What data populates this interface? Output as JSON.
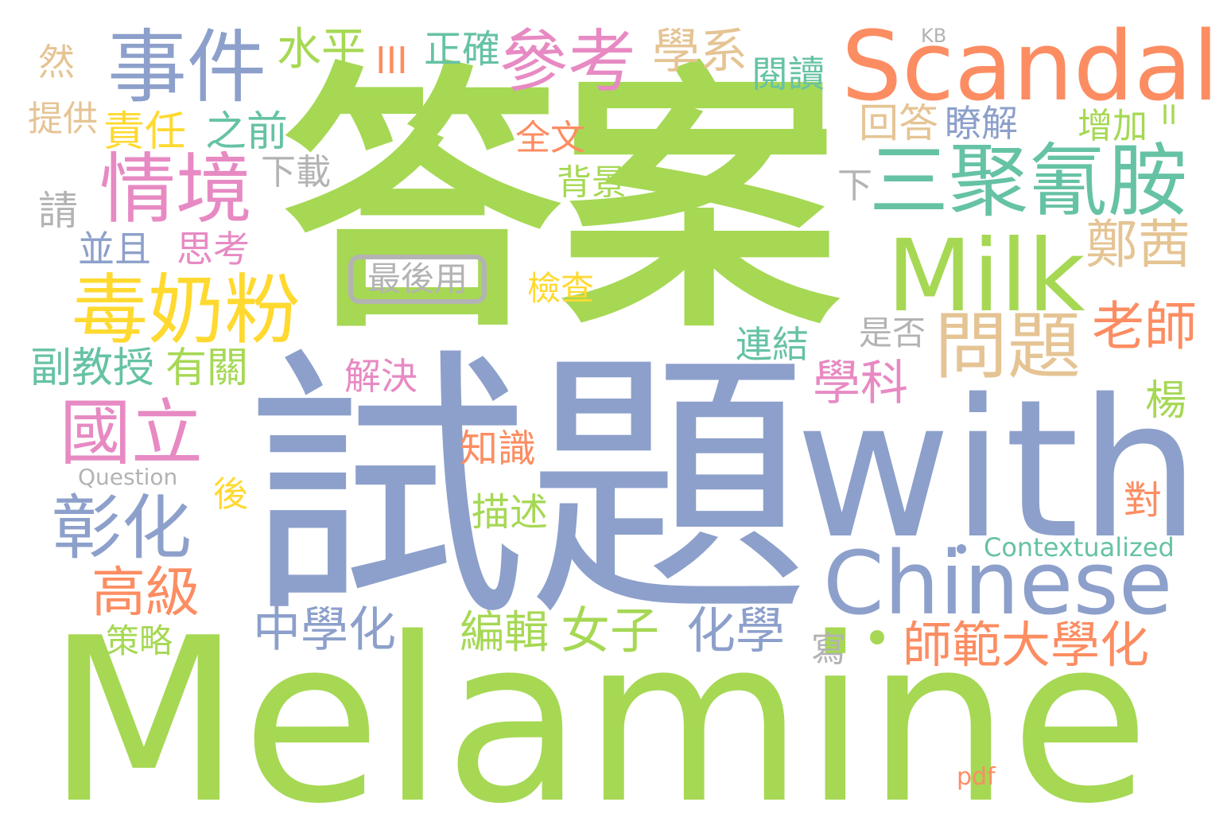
{
  "palette": {
    "green": "#a6d854",
    "blue": "#8da0cb",
    "orange": "#fc8d62",
    "pink": "#e78ac3",
    "teal": "#66c2a5",
    "tan": "#e5c494",
    "yellow": "#ffd92f",
    "grey": "#b3b3b3"
  },
  "words": [
    {
      "text": "答案",
      "color": "green"
    },
    {
      "text": "試題",
      "color": "blue"
    },
    {
      "text": "Melamine",
      "color": "green"
    },
    {
      "text": "with",
      "color": "blue"
    },
    {
      "text": "Scandal",
      "color": "orange"
    },
    {
      "text": "Milk",
      "color": "green"
    },
    {
      "text": "Chinese",
      "color": "blue"
    },
    {
      "text": "三聚氰胺",
      "color": "teal"
    },
    {
      "text": "毒奶粉",
      "color": "yellow"
    },
    {
      "text": "事件",
      "color": "blue"
    },
    {
      "text": "情境",
      "color": "pink"
    },
    {
      "text": "參考",
      "color": "pink"
    },
    {
      "text": "國立",
      "color": "pink"
    },
    {
      "text": "問題",
      "color": "tan"
    },
    {
      "text": "彰化",
      "color": "blue"
    },
    {
      "text": "老師",
      "color": "orange"
    },
    {
      "text": "鄭茜",
      "color": "tan"
    },
    {
      "text": "高級",
      "color": "orange"
    },
    {
      "text": "學系",
      "color": "tan"
    },
    {
      "text": "水平",
      "color": "green"
    },
    {
      "text": "正確",
      "color": "teal"
    },
    {
      "text": "KB",
      "color": "grey"
    },
    {
      "text": "III",
      "color": "orange"
    },
    {
      "text": "閱讀",
      "color": "teal"
    },
    {
      "text": "然",
      "color": "tan"
    },
    {
      "text": "提供",
      "color": "tan"
    },
    {
      "text": "責任",
      "color": "yellow"
    },
    {
      "text": "之前",
      "color": "teal"
    },
    {
      "text": "回答",
      "color": "tan"
    },
    {
      "text": "瞭解",
      "color": "blue"
    },
    {
      "text": "增加",
      "color": "green"
    },
    {
      "text": "II",
      "color": "green"
    },
    {
      "text": "全文",
      "color": "orange"
    },
    {
      "text": "下載",
      "color": "grey"
    },
    {
      "text": "背景",
      "color": "green"
    },
    {
      "text": "下",
      "color": "grey"
    },
    {
      "text": "請",
      "color": "grey"
    },
    {
      "text": "並且",
      "color": "blue"
    },
    {
      "text": "思考",
      "color": "pink"
    },
    {
      "text": "最後用",
      "color": "grey"
    },
    {
      "text": "檢查",
      "color": "yellow"
    },
    {
      "text": "是否",
      "color": "grey"
    },
    {
      "text": "連結",
      "color": "teal"
    },
    {
      "text": "副教授",
      "color": "teal"
    },
    {
      "text": "有關",
      "color": "green"
    },
    {
      "text": "解決",
      "color": "pink"
    },
    {
      "text": "學科",
      "color": "pink"
    },
    {
      "text": "楊",
      "color": "green"
    },
    {
      "text": "知識",
      "color": "orange"
    },
    {
      "text": "Question",
      "color": "grey"
    },
    {
      "text": "後",
      "color": "yellow"
    },
    {
      "text": "描述",
      "color": "green"
    },
    {
      "text": "對",
      "color": "orange"
    },
    {
      "text": "Contextualized",
      "color": "teal"
    },
    {
      "text": "中學化",
      "color": "blue"
    },
    {
      "text": "編輯",
      "color": "green"
    },
    {
      "text": "女子",
      "color": "green"
    },
    {
      "text": "化學",
      "color": "blue"
    },
    {
      "text": "師範大學化",
      "color": "orange"
    },
    {
      "text": "策略",
      "color": "green"
    },
    {
      "text": "寫",
      "color": "grey"
    },
    {
      "text": "pdf",
      "color": "orange"
    }
  ]
}
